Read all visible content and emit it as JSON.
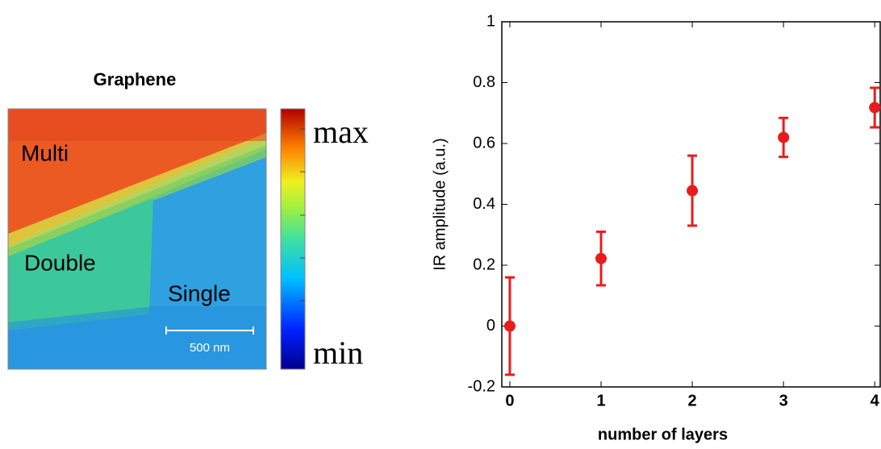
{
  "image_panel": {
    "title": "Graphene",
    "labels": [
      "Multi",
      "Double",
      "Single"
    ],
    "scale_bar": "500 nm",
    "colorbar_max": "max",
    "colorbar_min": "min"
  },
  "chart_data": {
    "type": "scatter",
    "x_label": "number of layers",
    "y_label": "IR amplitude (a.u.)",
    "x": [
      0,
      1,
      2,
      3,
      4
    ],
    "series": [
      {
        "color": "#e81c1c",
        "values": [
          0,
          0.222,
          0.445,
          0.62,
          0.718
        ],
        "errors": [
          0.16,
          0.088,
          0.115,
          0.064,
          0.065
        ]
      }
    ],
    "xlim": [
      -0.088,
      4.06
    ],
    "ylim": [
      -0.2,
      1
    ],
    "xticks": [
      0,
      1,
      2,
      3,
      4
    ],
    "yticks": [
      -0.2,
      0,
      0.2,
      0.4,
      0.6,
      0.8,
      1
    ]
  }
}
